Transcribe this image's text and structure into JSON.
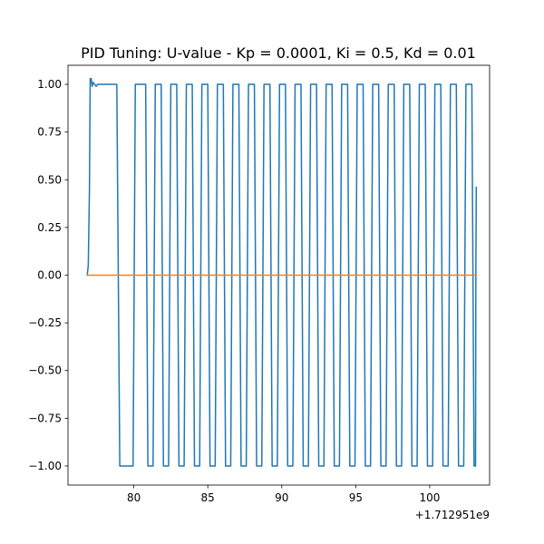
{
  "chart_data": {
    "type": "line",
    "title": "PID Tuning: U-value - Kp = 0.0001, Ki = 0.5, Kd = 0.01",
    "xlabel": "",
    "ylabel": "",
    "x_offset_label": "+1.712951e9",
    "xlim": [
      75.55,
      104.05
    ],
    "ylim": [
      -1.1,
      1.1
    ],
    "grid": false,
    "xticks": [
      80,
      85,
      90,
      95,
      100
    ],
    "xtick_labels": [
      "80",
      "85",
      "90",
      "95",
      "100"
    ],
    "yticks": [
      1.0,
      0.75,
      0.5,
      0.25,
      0.0,
      -0.25,
      -0.5,
      -0.75,
      -1.0
    ],
    "ytick_labels": [
      "1.00",
      "0.75",
      "0.50",
      "0.25",
      "0.00",
      "−0.25",
      "−0.50",
      "−0.75",
      "−1.00"
    ],
    "series": [
      {
        "color": "#1f77b4",
        "points": [
          [
            76.85,
            0.0
          ],
          [
            76.92,
            0.05
          ],
          [
            77.0,
            0.45
          ],
          [
            77.05,
            1.03
          ],
          [
            77.12,
            1.03
          ],
          [
            77.18,
            0.99
          ],
          [
            77.25,
            1.01
          ],
          [
            77.35,
            1.0
          ],
          [
            77.45,
            0.99
          ],
          [
            77.55,
            1.0
          ],
          [
            78.0,
            1.0
          ],
          [
            78.85,
            1.0
          ],
          [
            79.05,
            -1.0
          ],
          [
            79.95,
            -1.0
          ],
          [
            80.1,
            1.0
          ],
          [
            80.8,
            1.0
          ],
          [
            80.95,
            -1.0
          ],
          [
            81.3,
            -1.0
          ],
          [
            81.45,
            1.0
          ],
          [
            81.85,
            1.0
          ],
          [
            82.0,
            -1.0
          ],
          [
            82.35,
            -1.0
          ],
          [
            82.5,
            1.0
          ],
          [
            82.9,
            1.0
          ],
          [
            83.05,
            -1.0
          ],
          [
            83.4,
            -1.0
          ],
          [
            83.55,
            1.0
          ],
          [
            83.95,
            1.0
          ],
          [
            84.1,
            -1.0
          ],
          [
            84.45,
            -1.0
          ],
          [
            84.6,
            1.0
          ],
          [
            85.0,
            1.0
          ],
          [
            85.15,
            -1.0
          ],
          [
            85.5,
            -1.0
          ],
          [
            85.65,
            1.0
          ],
          [
            86.05,
            1.0
          ],
          [
            86.2,
            -1.0
          ],
          [
            86.55,
            -1.0
          ],
          [
            86.7,
            1.0
          ],
          [
            87.1,
            1.0
          ],
          [
            87.25,
            -1.0
          ],
          [
            87.6,
            -1.0
          ],
          [
            87.75,
            1.0
          ],
          [
            88.15,
            1.0
          ],
          [
            88.3,
            -1.0
          ],
          [
            88.65,
            -1.0
          ],
          [
            88.8,
            1.0
          ],
          [
            89.2,
            1.0
          ],
          [
            89.35,
            -1.0
          ],
          [
            89.7,
            -1.0
          ],
          [
            89.85,
            1.0
          ],
          [
            90.25,
            1.0
          ],
          [
            90.4,
            -1.0
          ],
          [
            90.75,
            -1.0
          ],
          [
            90.9,
            1.0
          ],
          [
            91.3,
            1.0
          ],
          [
            91.45,
            -1.0
          ],
          [
            91.8,
            -1.0
          ],
          [
            91.95,
            1.0
          ],
          [
            92.35,
            1.0
          ],
          [
            92.5,
            -1.0
          ],
          [
            92.85,
            -1.0
          ],
          [
            93.0,
            1.0
          ],
          [
            93.4,
            1.0
          ],
          [
            93.55,
            -1.0
          ],
          [
            93.9,
            -1.0
          ],
          [
            94.05,
            1.0
          ],
          [
            94.45,
            1.0
          ],
          [
            94.6,
            -1.0
          ],
          [
            94.95,
            -1.0
          ],
          [
            95.1,
            1.0
          ],
          [
            95.5,
            1.0
          ],
          [
            95.65,
            -1.0
          ],
          [
            96.0,
            -1.0
          ],
          [
            96.15,
            1.0
          ],
          [
            96.55,
            1.0
          ],
          [
            96.7,
            -1.0
          ],
          [
            97.05,
            -1.0
          ],
          [
            97.2,
            1.0
          ],
          [
            97.6,
            1.0
          ],
          [
            97.75,
            -1.0
          ],
          [
            98.1,
            -1.0
          ],
          [
            98.25,
            1.0
          ],
          [
            98.65,
            1.0
          ],
          [
            98.8,
            -1.0
          ],
          [
            99.15,
            -1.0
          ],
          [
            99.3,
            1.0
          ],
          [
            99.7,
            1.0
          ],
          [
            99.85,
            -1.0
          ],
          [
            100.2,
            -1.0
          ],
          [
            100.35,
            1.0
          ],
          [
            100.75,
            1.0
          ],
          [
            100.9,
            -1.0
          ],
          [
            101.25,
            -1.0
          ],
          [
            101.4,
            1.0
          ],
          [
            101.8,
            1.0
          ],
          [
            101.95,
            -1.0
          ],
          [
            102.3,
            -1.0
          ],
          [
            102.45,
            1.0
          ],
          [
            102.85,
            1.0
          ],
          [
            103.0,
            -1.0
          ],
          [
            103.1,
            -1.0
          ],
          [
            103.12,
            0.0
          ],
          [
            103.15,
            0.46
          ]
        ]
      },
      {
        "color": "#ff7f0e",
        "points": [
          [
            76.85,
            0.0
          ],
          [
            103.15,
            0.0
          ]
        ]
      }
    ]
  }
}
